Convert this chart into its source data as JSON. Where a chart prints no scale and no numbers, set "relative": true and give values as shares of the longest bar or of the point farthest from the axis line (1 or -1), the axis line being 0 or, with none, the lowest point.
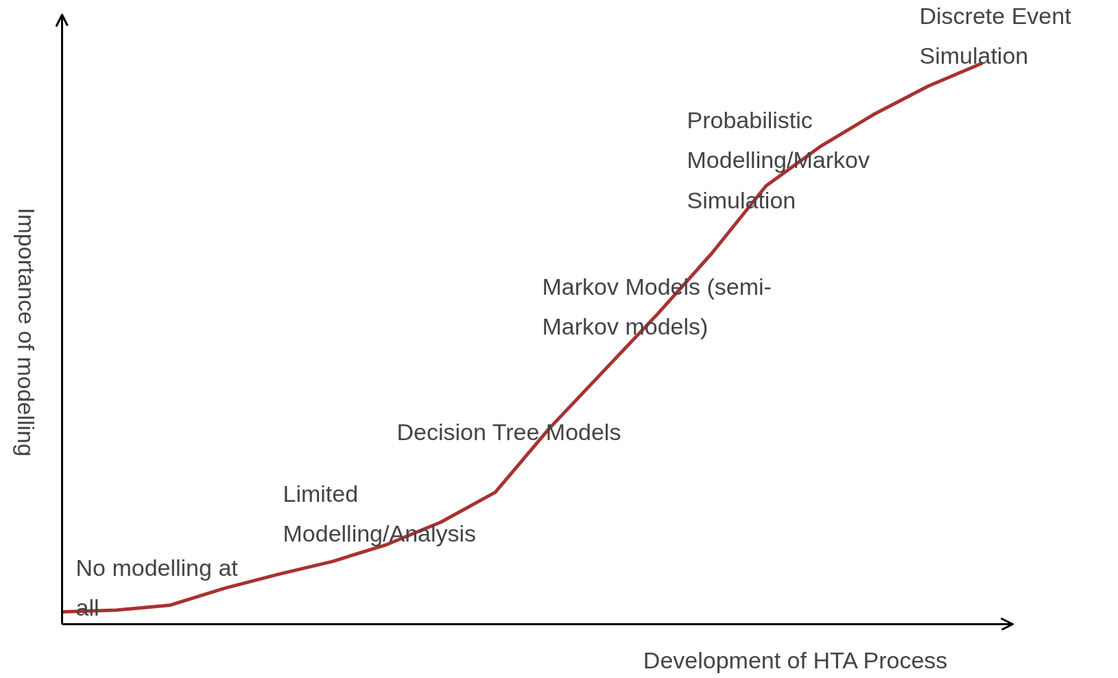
{
  "chart_data": {
    "type": "line",
    "relative": true,
    "xlabel": "Development of HTA Process",
    "ylabel": "Importance of modelling",
    "categories": [
      null,
      null,
      null,
      null,
      null,
      null,
      null,
      null,
      null,
      null,
      null,
      null,
      null,
      null,
      null,
      null,
      null,
      null
    ],
    "series": [
      {
        "color": "#a83232",
        "values": [
          0.022,
          0.025,
          0.034,
          0.064,
          0.089,
          0.112,
          0.142,
          0.182,
          0.235,
          0.349,
          0.451,
          0.553,
          0.661,
          0.781,
          0.851,
          0.909,
          0.959,
          1.0
        ]
      }
    ],
    "annotations": [
      "No modelling at\nall",
      "Limited\nModelling/Analysis",
      "Decision Tree Models",
      "Markov Models (semi-\nMarkov models)",
      "Probabilistic\nModelling/Markov\nSimulation",
      "Discrete Event\nSimulation"
    ],
    "grid": false
  }
}
